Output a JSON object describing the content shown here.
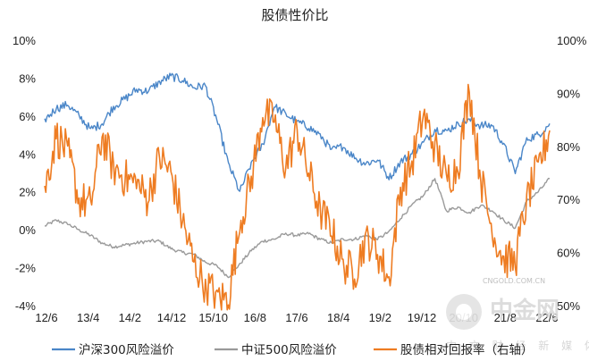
{
  "chart_data": {
    "type": "line",
    "title": "股债性价比",
    "x_tick_labels": [
      "12/6",
      "13/4",
      "14/2",
      "14/12",
      "15/10",
      "16/8",
      "17/6",
      "18/4",
      "19/2",
      "19/12",
      "20/10",
      "21/8",
      "22/6"
    ],
    "ylim_left": [
      -4,
      10
    ],
    "y_ticks_left": [
      "-4%",
      "-2%",
      "0%",
      "2%",
      "4%",
      "6%",
      "8%",
      "10%"
    ],
    "ylim_right": [
      50,
      100
    ],
    "y_ticks_right": [
      "50%",
      "60%",
      "70%",
      "80%",
      "90%",
      "100%"
    ],
    "grid": false,
    "legend_position": "bottom",
    "series": [
      {
        "name": "沪深300风险溢价",
        "axis": "left",
        "color": "#4a86c8",
        "values": [
          5.8,
          6.4,
          6.6,
          6.0,
          5.3,
          5.6,
          6.5,
          6.9,
          7.4,
          7.3,
          7.8,
          8.1,
          7.9,
          7.5,
          7.6,
          5.8,
          3.5,
          2.0,
          3.5,
          4.5,
          6.5,
          6.1,
          5.7,
          5.4,
          5.0,
          4.2,
          4.4,
          3.8,
          3.5,
          3.7,
          2.7,
          3.6,
          4.0,
          4.6,
          5.3,
          5.2,
          5.6,
          5.8,
          5.5,
          5.5,
          4.5,
          3.0,
          4.8,
          5.0,
          5.6
        ]
      },
      {
        "name": "中证500风险溢价",
        "axis": "left",
        "color": "#9a9a9a",
        "values": [
          0.2,
          0.5,
          0.3,
          0.0,
          -0.3,
          -0.7,
          -0.9,
          -0.8,
          -0.7,
          -0.6,
          -0.6,
          -1.0,
          -1.2,
          -1.3,
          -1.7,
          -1.9,
          -2.5,
          -1.8,
          -1.1,
          -0.6,
          -0.5,
          -0.2,
          -0.3,
          -0.2,
          -0.5,
          -0.7,
          -0.5,
          -0.5,
          -0.3,
          -0.5,
          -0.1,
          0.6,
          1.3,
          1.8,
          2.7,
          1.0,
          1.2,
          0.9,
          1.3,
          1.0,
          0.5,
          0.1,
          1.5,
          2.0,
          2.7
        ]
      },
      {
        "name": "股债相对回报率（右轴）",
        "axis": "right",
        "color": "#ee7c22",
        "values": [
          72,
          82,
          79,
          70,
          69,
          82,
          76,
          74,
          73,
          70,
          78,
          75,
          66,
          58,
          54,
          52,
          51,
          65,
          74,
          86,
          85,
          76,
          83,
          75,
          68,
          64,
          58,
          56,
          63,
          60,
          55,
          72,
          77,
          86,
          80,
          74,
          76,
          91,
          74,
          64,
          59,
          58,
          70,
          76,
          83
        ]
      }
    ]
  },
  "watermark": {
    "top": "CNGOLD.COM.CN",
    "main": "中金网",
    "sub": "中 文 财 经 新 媒 体"
  }
}
